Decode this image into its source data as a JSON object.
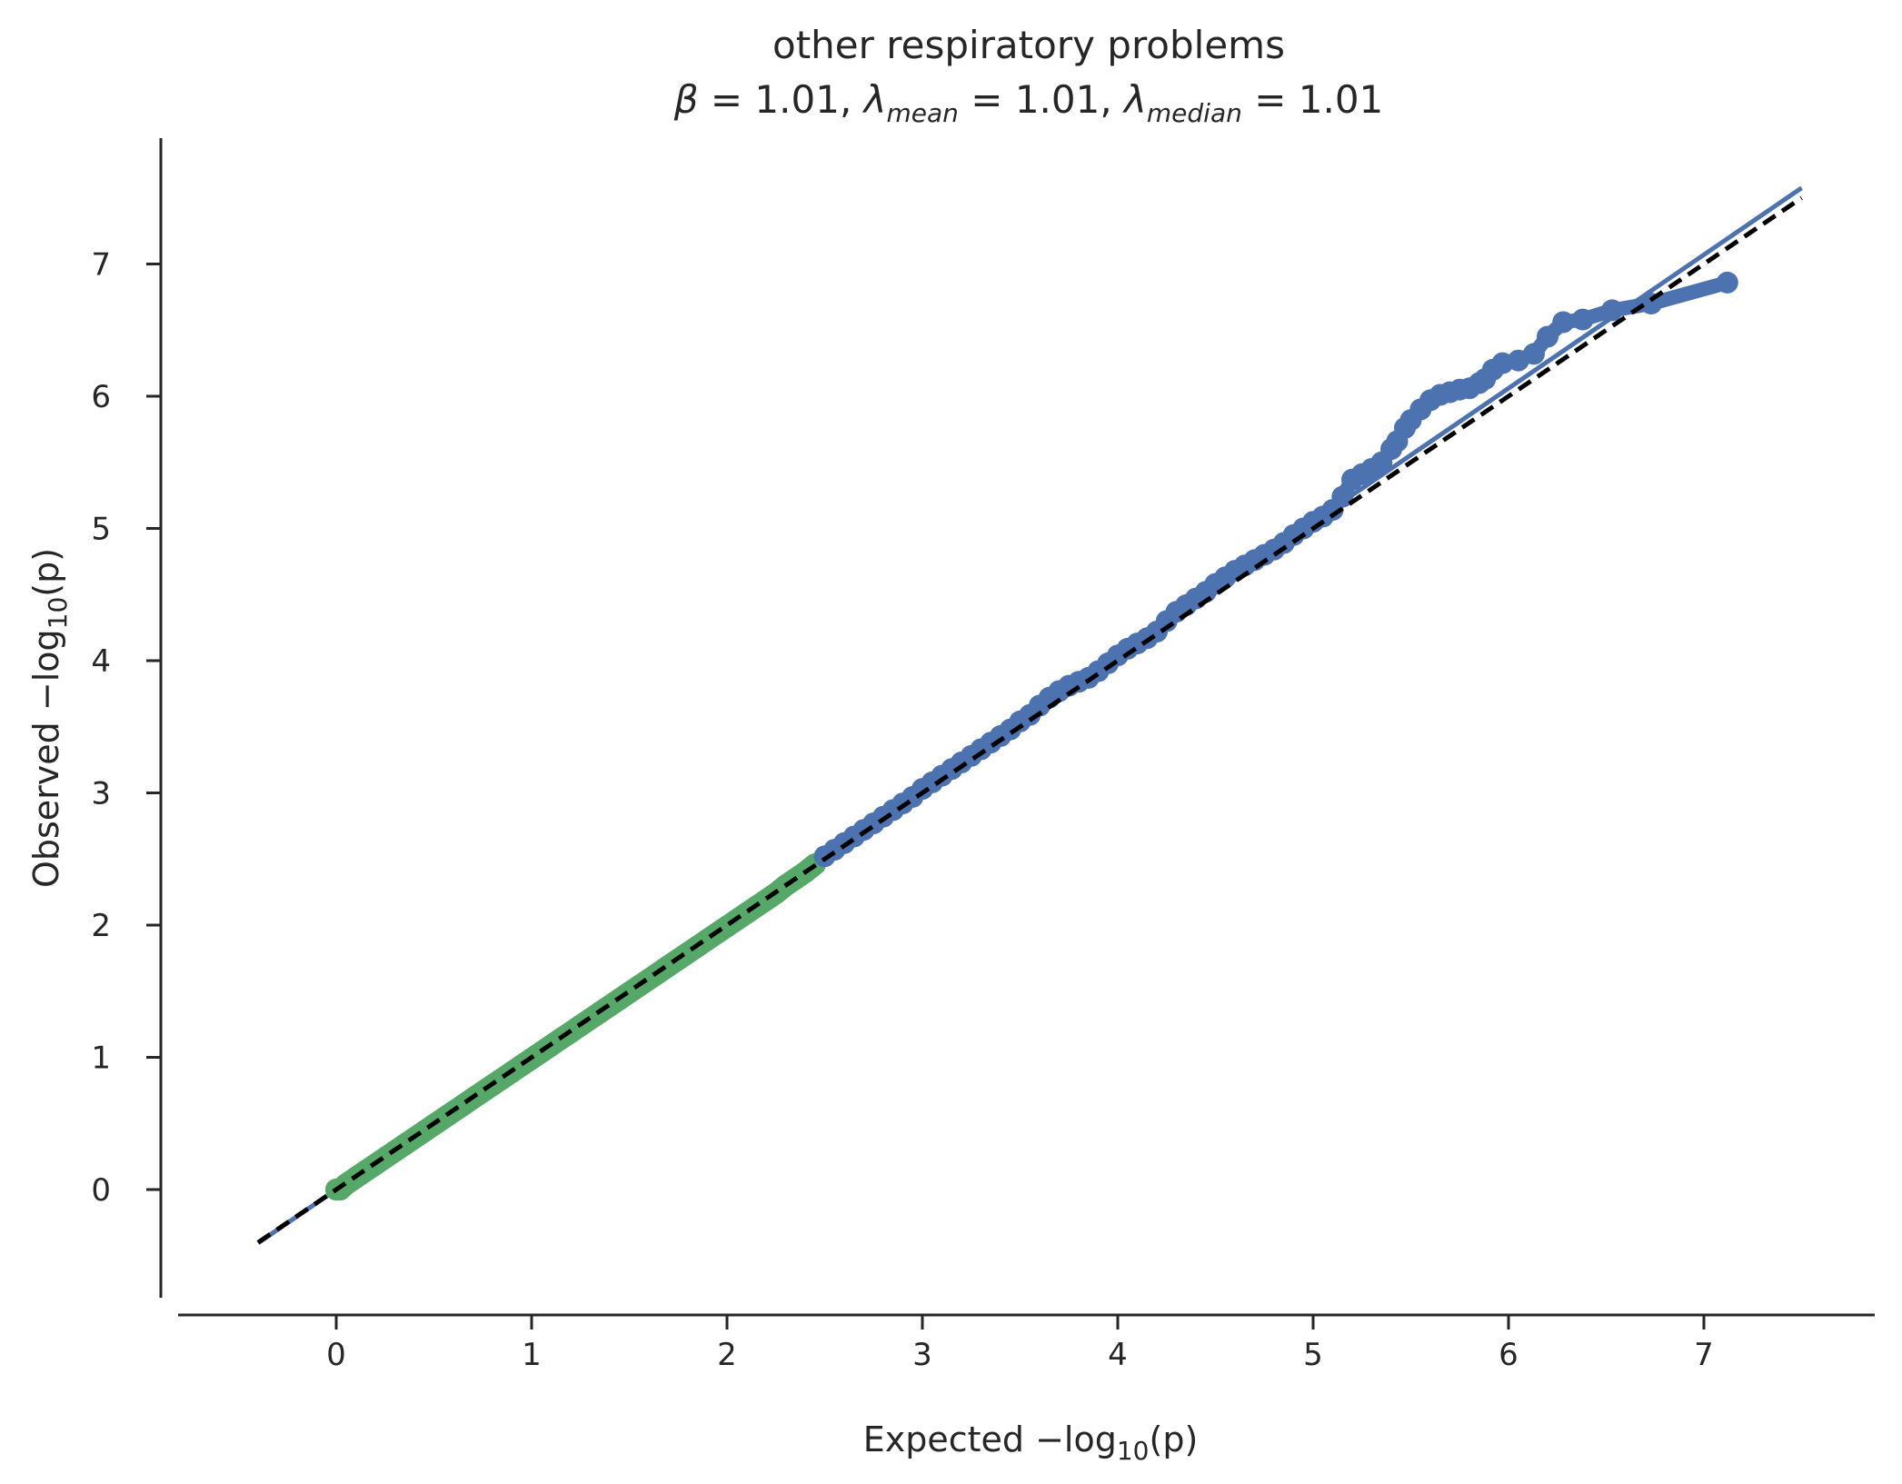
{
  "chart_data": {
    "type": "scatter",
    "title": "other respiratory problems",
    "subtitle": {
      "beta_symbol": "β",
      "lambda_symbol": "λ",
      "equals": " = ",
      "beta_value": "1.01",
      "sep": ", ",
      "mean_subscript": "mean",
      "mean_value": "1.01",
      "median_subscript": "median",
      "median_value": "1.01"
    },
    "xlabel": {
      "prefix": "Expected −log",
      "subscript": "10",
      "suffix": "(p)"
    },
    "ylabel": {
      "prefix": "Observed −log",
      "subscript": "10",
      "suffix": "(p)"
    },
    "xlim": [
      -0.8,
      7.85
    ],
    "ylim": [
      -0.85,
      7.95
    ],
    "xticks": [
      0,
      1,
      2,
      3,
      4,
      5,
      6,
      7
    ],
    "yticks": [
      0,
      1,
      2,
      3,
      4,
      5,
      6,
      7
    ],
    "grid": false,
    "colors": {
      "null_points": "#55a868",
      "tail_points": "#4c72b0",
      "fit_line": "#4c72b0",
      "reference_line": "#000000",
      "axis": "#262626"
    },
    "fit_line": {
      "slope": 1.01,
      "intercept": 0.0,
      "x_range": [
        -0.4,
        7.5
      ]
    },
    "reference_line": {
      "slope": 1.0,
      "intercept": 0.0,
      "x_range": [
        -0.4,
        7.5
      ],
      "style": "dashed"
    },
    "series": [
      {
        "role": "null",
        "color": "#55a868",
        "points": [
          [
            0.0,
            0.0
          ],
          [
            0.02,
            0.0
          ],
          [
            0.05,
            0.04
          ],
          [
            0.1,
            0.09
          ],
          [
            0.15,
            0.14
          ],
          [
            0.2,
            0.19
          ],
          [
            0.25,
            0.24
          ],
          [
            0.3,
            0.29
          ],
          [
            0.35,
            0.34
          ],
          [
            0.4,
            0.39
          ],
          [
            0.45,
            0.44
          ],
          [
            0.5,
            0.49
          ],
          [
            0.55,
            0.54
          ],
          [
            0.6,
            0.59
          ],
          [
            0.65,
            0.64
          ],
          [
            0.7,
            0.69
          ],
          [
            0.75,
            0.74
          ],
          [
            0.8,
            0.79
          ],
          [
            0.85,
            0.84
          ],
          [
            0.9,
            0.89
          ],
          [
            0.95,
            0.94
          ],
          [
            1.0,
            0.99
          ],
          [
            1.05,
            1.04
          ],
          [
            1.1,
            1.09
          ],
          [
            1.15,
            1.14
          ],
          [
            1.2,
            1.19
          ],
          [
            1.25,
            1.24
          ],
          [
            1.3,
            1.29
          ],
          [
            1.35,
            1.34
          ],
          [
            1.4,
            1.39
          ],
          [
            1.45,
            1.44
          ],
          [
            1.5,
            1.49
          ],
          [
            1.55,
            1.54
          ],
          [
            1.6,
            1.59
          ],
          [
            1.65,
            1.64
          ],
          [
            1.7,
            1.69
          ],
          [
            1.75,
            1.74
          ],
          [
            1.8,
            1.79
          ],
          [
            1.85,
            1.84
          ],
          [
            1.9,
            1.89
          ],
          [
            1.95,
            1.94
          ],
          [
            2.0,
            1.99
          ],
          [
            2.05,
            2.04
          ],
          [
            2.1,
            2.09
          ],
          [
            2.15,
            2.14
          ],
          [
            2.2,
            2.19
          ],
          [
            2.25,
            2.24
          ],
          [
            2.3,
            2.3
          ],
          [
            2.35,
            2.35
          ],
          [
            2.4,
            2.4
          ],
          [
            2.45,
            2.46
          ]
        ]
      },
      {
        "role": "tail",
        "color": "#4c72b0",
        "points": [
          [
            2.5,
            2.52
          ],
          [
            2.55,
            2.57
          ],
          [
            2.6,
            2.62
          ],
          [
            2.65,
            2.67
          ],
          [
            2.7,
            2.72
          ],
          [
            2.75,
            2.77
          ],
          [
            2.8,
            2.82
          ],
          [
            2.85,
            2.87
          ],
          [
            2.9,
            2.92
          ],
          [
            2.95,
            2.97
          ],
          [
            3.0,
            3.03
          ],
          [
            3.05,
            3.08
          ],
          [
            3.1,
            3.13
          ],
          [
            3.15,
            3.18
          ],
          [
            3.2,
            3.23
          ],
          [
            3.25,
            3.28
          ],
          [
            3.3,
            3.33
          ],
          [
            3.35,
            3.38
          ],
          [
            3.4,
            3.43
          ],
          [
            3.45,
            3.48
          ],
          [
            3.5,
            3.54
          ],
          [
            3.55,
            3.59
          ],
          [
            3.6,
            3.66
          ],
          [
            3.65,
            3.72
          ],
          [
            3.7,
            3.77
          ],
          [
            3.75,
            3.81
          ],
          [
            3.8,
            3.84
          ],
          [
            3.85,
            3.87
          ],
          [
            3.9,
            3.92
          ],
          [
            3.95,
            3.98
          ],
          [
            4.0,
            4.04
          ],
          [
            4.05,
            4.09
          ],
          [
            4.1,
            4.13
          ],
          [
            4.15,
            4.17
          ],
          [
            4.2,
            4.22
          ],
          [
            4.25,
            4.3
          ],
          [
            4.3,
            4.37
          ],
          [
            4.35,
            4.42
          ],
          [
            4.4,
            4.47
          ],
          [
            4.45,
            4.52
          ],
          [
            4.5,
            4.58
          ],
          [
            4.55,
            4.63
          ],
          [
            4.6,
            4.68
          ],
          [
            4.65,
            4.72
          ],
          [
            4.7,
            4.76
          ],
          [
            4.75,
            4.8
          ],
          [
            4.8,
            4.84
          ],
          [
            4.85,
            4.89
          ],
          [
            4.9,
            4.95
          ],
          [
            4.95,
            5.0
          ],
          [
            5.0,
            5.05
          ],
          [
            5.05,
            5.09
          ],
          [
            5.1,
            5.14
          ],
          [
            5.15,
            5.24
          ],
          [
            5.2,
            5.37
          ],
          [
            5.25,
            5.41
          ],
          [
            5.3,
            5.45
          ],
          [
            5.35,
            5.5
          ],
          [
            5.4,
            5.6
          ],
          [
            5.43,
            5.66
          ],
          [
            5.47,
            5.76
          ],
          [
            5.5,
            5.82
          ],
          [
            5.55,
            5.9
          ],
          [
            5.6,
            5.97
          ],
          [
            5.65,
            6.01
          ],
          [
            5.7,
            6.03
          ],
          [
            5.75,
            6.05
          ],
          [
            5.8,
            6.06
          ],
          [
            5.85,
            6.1
          ],
          [
            5.88,
            6.13
          ],
          [
            5.92,
            6.2
          ],
          [
            5.97,
            6.25
          ],
          [
            6.05,
            6.27
          ],
          [
            6.13,
            6.32
          ],
          [
            6.2,
            6.45
          ],
          [
            6.28,
            6.56
          ],
          [
            6.38,
            6.58
          ],
          [
            6.53,
            6.65
          ],
          [
            6.73,
            6.7
          ],
          [
            7.12,
            6.86
          ]
        ]
      }
    ]
  }
}
